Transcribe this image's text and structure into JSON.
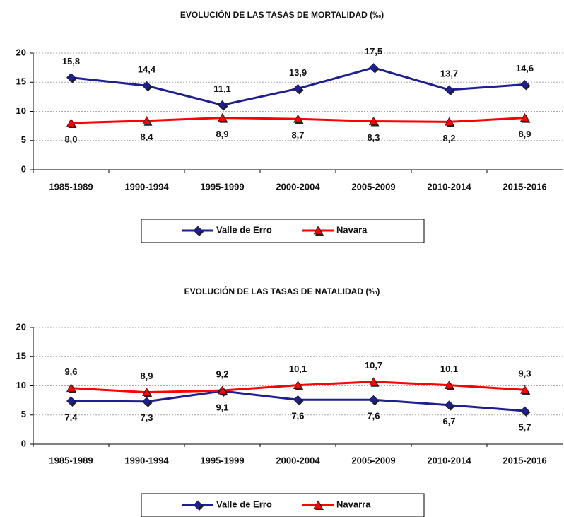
{
  "chart_data": [
    {
      "type": "line",
      "title": "EVOLUCIÓN DE LAS  TASAS DE  MORTALIDAD (‰)",
      "categories": [
        "1985-1989",
        "1990-1994",
        "1995-1999",
        "2000-2004",
        "2005-2009",
        "2010-2014",
        "2015-2016"
      ],
      "series": [
        {
          "name": "Valle de Erro",
          "color": "#1f1f8f",
          "marker": "diamond",
          "values": [
            15.8,
            14.4,
            11.1,
            13.9,
            17.5,
            13.7,
            14.6
          ],
          "value_labels": [
            "15,8",
            "14,4",
            "11,1",
            "13,9",
            "17,5",
            "13,7",
            "14,6"
          ]
        },
        {
          "name": "Navara",
          "color": "#ff0000",
          "marker": "triangle",
          "values": [
            8.0,
            8.4,
            8.9,
            8.7,
            8.3,
            8.2,
            8.9
          ],
          "value_labels": [
            "8,0",
            "8,4",
            "8,9",
            "8,7",
            "8,3",
            "8,2",
            "8,9"
          ]
        }
      ],
      "ylim": [
        0,
        20
      ],
      "yticks": [
        0,
        5,
        10,
        15,
        20
      ],
      "grid": true,
      "legend": "bottom"
    },
    {
      "type": "line",
      "title": "EVOLUCIÓN DE LAS  TASAS DE NATALIDAD (‰)",
      "categories": [
        "1985-1989",
        "1990-1994",
        "1995-1999",
        "2000-2004",
        "2005-2009",
        "2010-2014",
        "2015-2016"
      ],
      "series": [
        {
          "name": "Valle de Erro",
          "color": "#1f1f8f",
          "marker": "diamond",
          "values": [
            7.4,
            7.3,
            9.1,
            7.6,
            7.6,
            6.7,
            5.7
          ],
          "value_labels": [
            "7,4",
            "7,3",
            "9,1",
            "7,6",
            "7,6",
            "6,7",
            "5,7"
          ]
        },
        {
          "name": "Navarra",
          "color": "#ff0000",
          "marker": "triangle",
          "values": [
            9.6,
            8.9,
            9.2,
            10.1,
            10.7,
            10.1,
            9.3
          ],
          "value_labels": [
            "9,6",
            "8,9",
            "9,2",
            "10,1",
            "10,7",
            "10,1",
            "9,3"
          ]
        }
      ],
      "ylim": [
        0,
        20
      ],
      "yticks": [
        0,
        5,
        10,
        15,
        20
      ],
      "grid": true,
      "legend": "bottom"
    }
  ]
}
